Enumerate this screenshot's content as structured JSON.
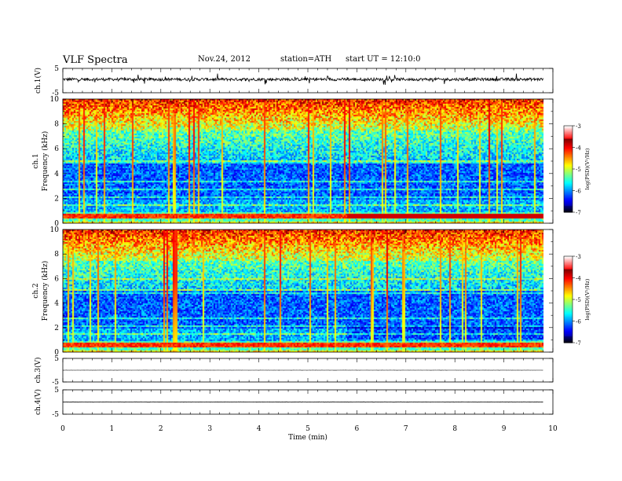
{
  "header": {
    "title": "VLF  Spectra",
    "date": "Nov.24, 2012",
    "station": "station=ATH",
    "start": "start  UT  =   12:10:0"
  },
  "chart_data": [
    {
      "type": "line",
      "id": "ch1-waveform",
      "ylabel": "ch.1(V)",
      "ylim": [
        -5,
        5
      ],
      "yticks": [
        "5",
        "-5"
      ],
      "x_range_min": [
        0,
        9.8
      ],
      "baseline_v": 0.5,
      "noise_v": 1.2
    },
    {
      "type": "heatmap",
      "id": "ch1-spectrogram",
      "ylabel_channel": "ch.1",
      "ylabel": "Frequency  (kHz)",
      "ylim": [
        0,
        10
      ],
      "yticks": [
        "0",
        "2",
        "4",
        "6",
        "8",
        "10"
      ],
      "x_range_min": [
        0,
        9.8
      ],
      "colorbar": {
        "label": "log(PSD)(V²/Hz)",
        "ticks": [
          "-3",
          "-4",
          "-5",
          "-6",
          "-7"
        ],
        "range": [
          -7,
          -3
        ]
      }
    },
    {
      "type": "heatmap",
      "id": "ch2-spectrogram",
      "ylabel_channel": "ch.2",
      "ylabel": "Frequency  (kHz)",
      "ylim": [
        0,
        10
      ],
      "yticks": [
        "0",
        "2",
        "4",
        "6",
        "8",
        "10"
      ],
      "x_range_min": [
        0,
        9.8
      ],
      "colorbar": {
        "label": "log(PSD)(V²/Hz)",
        "ticks": [
          "-3",
          "-4",
          "-5",
          "-6",
          "-7"
        ],
        "range": [
          -7,
          -3
        ]
      }
    },
    {
      "type": "line",
      "id": "ch3-waveform",
      "ylabel": "ch.3(V)",
      "ylim": [
        -5,
        5
      ],
      "yticks": [
        "5",
        "-5"
      ],
      "x_range_min": [
        0,
        9.8
      ],
      "baseline_v": 0.0,
      "noise_v": 0.05
    },
    {
      "type": "line",
      "id": "ch4-waveform",
      "ylabel": "ch.4(V)",
      "ylim": [
        -5,
        5
      ],
      "yticks": [
        "5",
        "-5"
      ],
      "x_range_min": [
        0,
        9.8
      ],
      "baseline_v": 0.0,
      "noise_v": 0.15
    }
  ],
  "x_axis": {
    "label": "Time  (min)",
    "xlim": [
      0,
      10
    ],
    "ticks": [
      "0",
      "1",
      "2",
      "3",
      "4",
      "5",
      "6",
      "7",
      "8",
      "9",
      "10"
    ]
  }
}
